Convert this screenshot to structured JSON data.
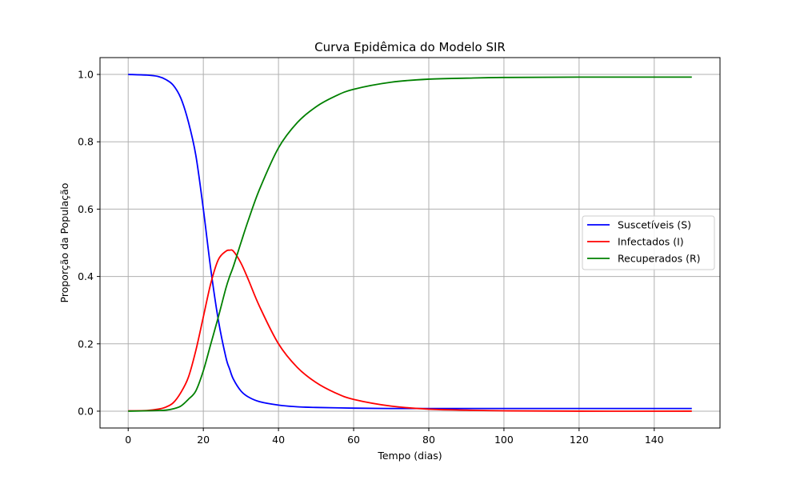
{
  "chart_data": {
    "type": "line",
    "title": "Curva Epidêmica do Modelo SIR",
    "xlabel": "Tempo (dias)",
    "ylabel": "Proporção da População",
    "xlim": [
      -7.5,
      157.5
    ],
    "ylim": [
      -0.05,
      1.05
    ],
    "xticks": [
      0,
      20,
      40,
      60,
      80,
      100,
      120,
      140
    ],
    "yticks": [
      0.0,
      0.2,
      0.4,
      0.6,
      0.8,
      1.0
    ],
    "xtick_labels": [
      "0",
      "20",
      "40",
      "60",
      "80",
      "100",
      "120",
      "140"
    ],
    "ytick_labels": [
      "0.0",
      "0.2",
      "0.4",
      "0.6",
      "0.8",
      "1.0"
    ],
    "grid": true,
    "legend_position": "center-right",
    "x": [
      0,
      5,
      8,
      10,
      12,
      14,
      16,
      18,
      20,
      22,
      24,
      26,
      27,
      28,
      30,
      32,
      35,
      40,
      45,
      50,
      55,
      60,
      70,
      80,
      90,
      100,
      120,
      150
    ],
    "series": [
      {
        "name": "Suscetíveis (S)",
        "color": "#0000ff",
        "values": [
          1.0,
          0.998,
          0.994,
          0.985,
          0.968,
          0.93,
          0.86,
          0.76,
          0.6,
          0.42,
          0.27,
          0.16,
          0.125,
          0.095,
          0.06,
          0.042,
          0.028,
          0.018,
          0.013,
          0.011,
          0.01,
          0.009,
          0.008,
          0.008,
          0.008,
          0.008,
          0.008,
          0.008
        ]
      },
      {
        "name": "Infectados (I)",
        "color": "#ff0000",
        "values": [
          0.001,
          0.002,
          0.006,
          0.012,
          0.025,
          0.055,
          0.1,
          0.18,
          0.28,
          0.38,
          0.45,
          0.475,
          0.478,
          0.475,
          0.44,
          0.39,
          0.31,
          0.2,
          0.13,
          0.085,
          0.055,
          0.035,
          0.015,
          0.006,
          0.003,
          0.001,
          0.0,
          0.0
        ]
      },
      {
        "name": "Recuperados (R)",
        "color": "#008000",
        "values": [
          0.0,
          0.001,
          0.002,
          0.003,
          0.007,
          0.015,
          0.035,
          0.06,
          0.12,
          0.2,
          0.28,
          0.365,
          0.4,
          0.43,
          0.5,
          0.568,
          0.66,
          0.782,
          0.857,
          0.904,
          0.935,
          0.956,
          0.977,
          0.986,
          0.989,
          0.991,
          0.992,
          0.992
        ]
      }
    ]
  }
}
